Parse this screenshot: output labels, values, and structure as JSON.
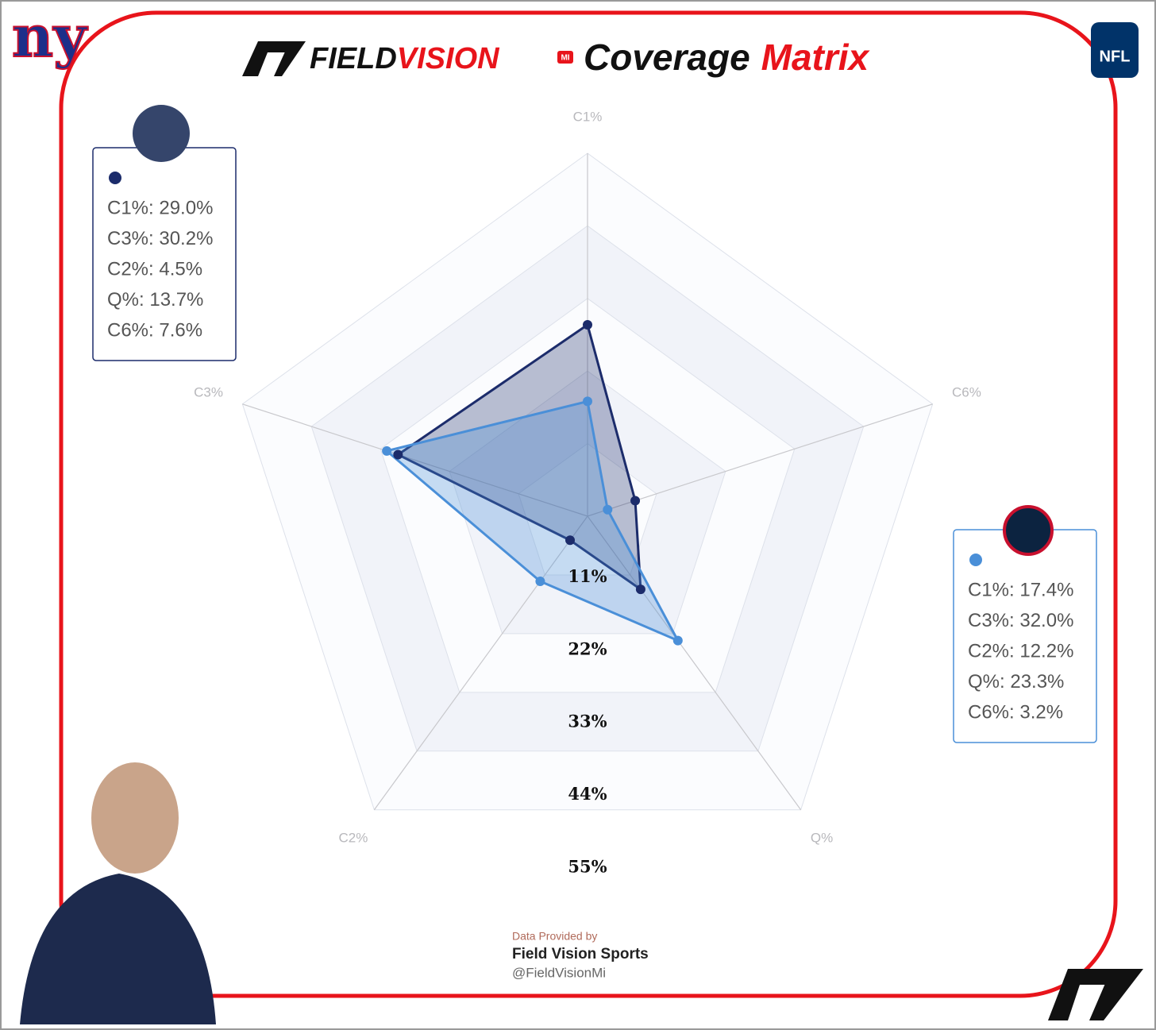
{
  "header": {
    "logo_left": "ny",
    "logo_right": "NFL",
    "brand_first": "FIELD",
    "brand_second": "VISION",
    "brand_badge": "MI",
    "title_first": "Coverage",
    "title_second": "Matrix"
  },
  "chart_data": {
    "type": "radar",
    "categories": [
      "C1%",
      "C3%",
      "C2%",
      "Q%",
      "C6%"
    ],
    "rlim": [
      0,
      55
    ],
    "rticks": [
      {
        "value": 11,
        "label": "11%"
      },
      {
        "value": 22,
        "label": "22%"
      },
      {
        "value": 33,
        "label": "33%"
      },
      {
        "value": 44,
        "label": "44%"
      },
      {
        "value": 55,
        "label": "55%"
      }
    ],
    "grid": true,
    "series": [
      {
        "color": "#1c2c6b",
        "values": [
          29.0,
          30.2,
          4.5,
          13.7,
          7.6
        ],
        "tooltip": [
          "C1%: 29.0%",
          "C3%: 30.2%",
          "C2%: 4.5%",
          "Q%: 13.7%",
          "C6%: 7.6%"
        ]
      },
      {
        "color": "#4a8fd8",
        "values": [
          17.4,
          32.0,
          12.2,
          23.3,
          3.2
        ],
        "tooltip": [
          "C1%: 17.4%",
          "C3%: 32.0%",
          "C2%: 12.2%",
          "Q%: 23.3%",
          "C6%: 3.2%"
        ]
      }
    ]
  },
  "footer": {
    "line1": "Data Provided by",
    "line2": "Field Vision Sports",
    "line3": "@FieldVisionMi"
  }
}
